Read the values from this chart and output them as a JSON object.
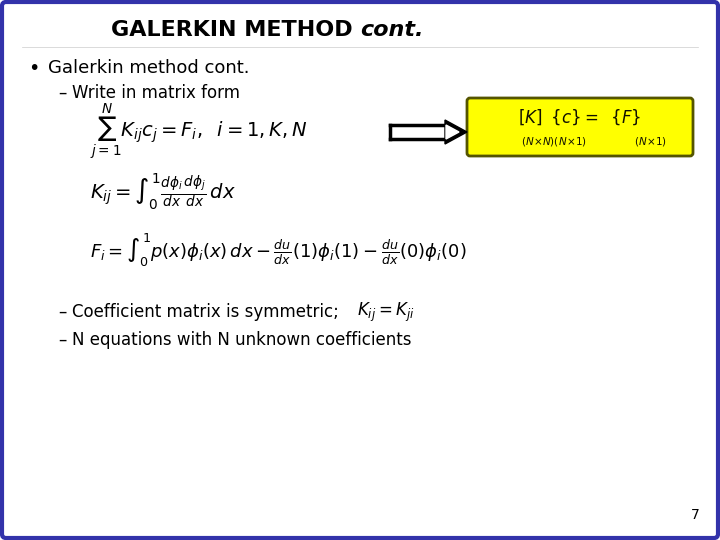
{
  "border_color": "#3333aa",
  "bg_color": "#ffffff",
  "text_color": "#000000",
  "box_bg": "#ffff00",
  "box_border": "#555500",
  "title_normal": "GALERKIN METHOD ",
  "title_italic": "cont.",
  "bullet1": "Galerkin method cont.",
  "sub1": "Write in matrix form",
  "bullet2a_plain": "Coefficient matrix is symmetric; ",
  "bullet2a_math": "$K_{ij} = K_{ji}$",
  "bullet2b": "N equations with N unknown coefficients",
  "page_number": "7",
  "title_fontsize": 16,
  "body_fontsize": 13,
  "eq_fontsize": 13,
  "small_fontsize": 9
}
